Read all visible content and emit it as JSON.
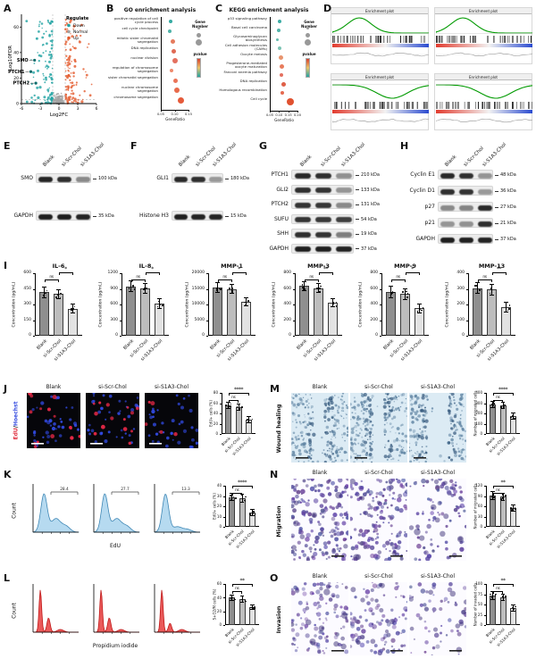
{
  "groups": [
    "Blank",
    "si-Scr-Chol",
    "si-S1A3-Chol"
  ],
  "colors": {
    "down": "#21a2a2",
    "normal": "#a3a3a3",
    "up": "#e4592b",
    "bars": [
      "#8f8f8f",
      "#bdbdbd",
      "#e2e2e2"
    ],
    "flow_blue": "#aed6ee",
    "flow_blue_line": "#3f87b5",
    "flow_red": "#e84848",
    "edu_red": "#e03040",
    "hoechst_blue": "#3a50e0",
    "gsea_green": "#009a00"
  },
  "volcano": {
    "letter": "A",
    "xlabel": "Log2FC",
    "ylabel": "-Log10FDR",
    "legend_title": "Regulate",
    "legend": [
      "Down",
      "Normal",
      "Up"
    ],
    "genes": [
      "SMO",
      "PTCH1",
      "PTCH2"
    ],
    "xticks": [
      "-6",
      "-3",
      "0",
      "3",
      "6"
    ],
    "yticks": [
      "0",
      "20",
      "40",
      "60"
    ]
  },
  "go": {
    "letter": "B",
    "title": "GO enrichment analysis",
    "xlabel": "GeneRatio",
    "size_legend": "Gene Number",
    "color_legend": "pvalue",
    "xticks": [
      "0.05",
      "0.10",
      "0.15"
    ],
    "terms": [
      {
        "label": "positive regulation of cell cycle process",
        "x": 0.3,
        "size": 4,
        "color": "#35aaa2"
      },
      {
        "label": "cell cycle checkpoint",
        "x": 0.25,
        "size": 4,
        "color": "#4fb3a8"
      },
      {
        "label": "mitotic sister chromatid segregation",
        "x": 0.42,
        "size": 5,
        "color": "#e57b5e"
      },
      {
        "label": "DNA replication",
        "x": 0.48,
        "size": 5,
        "color": "#df6a55"
      },
      {
        "label": "nuclear division",
        "x": 0.55,
        "size": 6,
        "color": "#e4705f"
      },
      {
        "label": "regulation of chromosome segregation",
        "x": 0.38,
        "size": 4,
        "color": "#ef8a6d"
      },
      {
        "label": "sister chromatid segregation",
        "x": 0.58,
        "size": 5,
        "color": "#ea7458"
      },
      {
        "label": "nuclear chromosome segregation",
        "x": 0.63,
        "size": 6,
        "color": "#e86a4b"
      },
      {
        "label": "chromosome segregation",
        "x": 0.82,
        "size": 7,
        "color": "#e55a3a"
      }
    ]
  },
  "kegg": {
    "letter": "C",
    "title": "KEGG enrichment analysis",
    "xlabel": "GeneRatio",
    "size_legend": "Gene Number",
    "color_legend": "pvalue",
    "xticks": [
      "0.05",
      "0.10",
      "0.15",
      "0.20"
    ],
    "terms": [
      {
        "label": "p53 signaling pathway",
        "x": 0.3,
        "size": 4,
        "color": "#3dada5"
      },
      {
        "label": "Basal cell carcinoma",
        "x": 0.25,
        "size": 4,
        "color": "#52b4aa"
      },
      {
        "label": "Glycosaminoglycan biosynthesis",
        "x": 0.22,
        "size": 3,
        "color": "#63bcae"
      },
      {
        "label": "Cell adhesion molecules (CAMs)",
        "x": 0.33,
        "size": 4,
        "color": "#7cc4b4"
      },
      {
        "label": "Oocyte meiosis",
        "x": 0.4,
        "size": 5,
        "color": "#e8946e"
      },
      {
        "label": "Progesterone-mediated oocyte maturation",
        "x": 0.45,
        "size": 5,
        "color": "#e87c5d"
      },
      {
        "label": "Fanconi anemia pathway",
        "x": 0.42,
        "size": 4,
        "color": "#e4705f"
      },
      {
        "label": "DNA replication",
        "x": 0.5,
        "size": 5,
        "color": "#df6048"
      },
      {
        "label": "Homologous recombination",
        "x": 0.47,
        "size": 4,
        "color": "#e56a50"
      },
      {
        "label": "Cell cycle",
        "x": 0.85,
        "size": 8,
        "color": "#e0512f"
      }
    ]
  },
  "gsea": {
    "letter": "D",
    "plots": [
      {
        "title": "Enrichment plot"
      },
      {
        "title": "Enrichment plot"
      },
      {
        "title": "Enrichment plot"
      },
      {
        "title": "Enrichment plot"
      }
    ]
  },
  "blots": {
    "E": {
      "letter": "E",
      "rows": [
        {
          "protein": "SMO",
          "kda": "100 kDa",
          "bands": [
            0.92,
            0.88,
            0.45
          ]
        },
        {
          "protein": "GAPDH",
          "kda": "35 kDa",
          "bands": [
            0.95,
            0.95,
            0.92
          ]
        }
      ]
    },
    "F": {
      "letter": "F",
      "rows": [
        {
          "protein": "GLI1",
          "kda": "180 kDa",
          "bands": [
            0.9,
            0.88,
            0.38
          ]
        },
        {
          "protein": "Histone H3",
          "kda": "15 kDa",
          "bands": [
            0.95,
            0.93,
            0.92
          ]
        }
      ]
    },
    "G": {
      "letter": "G",
      "rows": [
        {
          "protein": "PTCH1",
          "kda": "210 kDa",
          "bands": [
            0.9,
            0.88,
            0.42
          ]
        },
        {
          "protein": "GLI2",
          "kda": "133 kDa",
          "bands": [
            0.88,
            0.85,
            0.4
          ]
        },
        {
          "protein": "PTCH2",
          "kda": "131 kDa",
          "bands": [
            0.86,
            0.84,
            0.45
          ]
        },
        {
          "protein": "SUFU",
          "kda": "54 kDa",
          "bands": [
            0.85,
            0.83,
            0.8
          ]
        },
        {
          "protein": "SHH",
          "kda": "19 kDa",
          "bands": [
            0.88,
            0.86,
            0.5
          ]
        },
        {
          "protein": "GAPDH",
          "kda": "37 kDa",
          "bands": [
            0.95,
            0.94,
            0.93
          ]
        }
      ]
    },
    "H": {
      "letter": "H",
      "rows": [
        {
          "protein": "Cyclin E1",
          "kda": "48 kDa",
          "bands": [
            0.9,
            0.87,
            0.4
          ]
        },
        {
          "protein": "Cyclin D1",
          "kda": "36 kDa",
          "bands": [
            0.88,
            0.86,
            0.38
          ]
        },
        {
          "protein": "p27",
          "kda": "27 kDa",
          "bands": [
            0.45,
            0.48,
            0.9
          ]
        },
        {
          "protein": "p21",
          "kda": "21 kDa",
          "bands": [
            0.4,
            0.42,
            0.88
          ]
        },
        {
          "protein": "GAPDH",
          "kda": "37 kDa",
          "bands": [
            0.95,
            0.94,
            0.93
          ]
        }
      ]
    }
  },
  "elisa": {
    "letter": "I",
    "charts": [
      {
        "title": "IL-6",
        "ylabel": "Concentration (pg/mL)",
        "yticks": [
          0,
          150,
          300,
          450,
          600
        ],
        "values": [
          420,
          400,
          260
        ],
        "errors": [
          55,
          50,
          45
        ],
        "ns": "ns",
        "star": "*"
      },
      {
        "title": "IL-8",
        "ylabel": "Concentration (pg/mL)",
        "yticks": [
          0,
          300,
          600,
          900,
          1200
        ],
        "values": [
          950,
          910,
          620
        ],
        "errors": [
          110,
          100,
          95
        ],
        "ns": "ns",
        "star": "*"
      },
      {
        "title": "MMP-1",
        "ylabel": "Concentration (pg/mL)",
        "yticks": [
          0,
          5000,
          10000,
          15000,
          20000
        ],
        "values": [
          15500,
          15000,
          10800
        ],
        "errors": [
          1600,
          1500,
          1400
        ],
        "ns": "ns",
        "star": "*"
      },
      {
        "title": "MMP-3",
        "ylabel": "Concentration (pg/mL)",
        "yticks": [
          0,
          200,
          400,
          600,
          800
        ],
        "values": [
          635,
          610,
          420
        ],
        "errors": [
          65,
          60,
          55
        ],
        "ns": "ns",
        "star": "**"
      },
      {
        "title": "MMP-9",
        "ylabel": "Concentration (pg/mL)",
        "yticks": [
          0,
          200,
          400,
          600,
          800
        ],
        "values": [
          560,
          535,
          350
        ],
        "errors": [
          75,
          70,
          60
        ],
        "ns": "ns",
        "star": "*"
      },
      {
        "title": "MMP-13",
        "ylabel": "Concentration (pg/mL)",
        "yticks": [
          0,
          100,
          200,
          300,
          400
        ],
        "values": [
          305,
          295,
          185
        ],
        "errors": [
          38,
          36,
          33
        ],
        "ns": "ns",
        "star": "**"
      }
    ]
  },
  "edu": {
    "letter": "J",
    "label_red": "EdU",
    "label_sep": "/",
    "label_blue": "Hoechst",
    "chart": {
      "ylabel": "EdU+ cells (%)",
      "yticks": [
        0,
        20,
        40,
        60,
        80
      ],
      "values": [
        56,
        53,
        28
      ],
      "errors": [
        7,
        7,
        6
      ],
      "ns": "ns",
      "star": "****"
    }
  },
  "flow_edu": {
    "letter": "K",
    "xlabel": "EdU",
    "ylabel": "Count",
    "gates": [
      "28.4",
      "27.7",
      "13.3"
    ],
    "chart": {
      "ylabel": "EdU+ cells (%)",
      "yticks": [
        0,
        10,
        20,
        30,
        40
      ],
      "values": [
        29,
        28,
        14
      ],
      "errors": [
        4,
        4,
        3
      ],
      "ns": "ns",
      "star": "****"
    }
  },
  "flow_pi": {
    "letter": "L",
    "xlabel": "Propidium iodide",
    "ylabel": "Count",
    "chart": {
      "ylabel": "S+G2/M cells (%)",
      "yticks": [
        0,
        20,
        40,
        60
      ],
      "values": [
        40,
        38,
        26
      ],
      "errors": [
        5,
        5,
        4
      ],
      "ns": "ns",
      "star": "**"
    }
  },
  "wound": {
    "letter": "M",
    "side_label": "Wound healing",
    "chart": {
      "ylabel": "Number of migrated cells",
      "yticks": [
        0,
        100,
        200,
        300,
        400
      ],
      "values": [
        290,
        280,
        175
      ],
      "errors": [
        35,
        32,
        30
      ],
      "ns": "ns",
      "star": "****"
    }
  },
  "migration": {
    "letter": "N",
    "side_label": "Migration",
    "chart": {
      "ylabel": "Number of migrated cells",
      "yticks": [
        0,
        30,
        60,
        90,
        120
      ],
      "values": [
        92,
        88,
        56
      ],
      "errors": [
        12,
        11,
        10
      ],
      "ns": "ns",
      "star": "**"
    }
  },
  "invasion": {
    "letter": "O",
    "side_label": "Invasion",
    "chart": {
      "ylabel": "Number of invaded cells",
      "yticks": [
        0,
        25,
        50,
        75,
        100
      ],
      "values": [
        72,
        68,
        42
      ],
      "errors": [
        10,
        9,
        8
      ],
      "ns": "ns",
      "star": "**"
    }
  }
}
